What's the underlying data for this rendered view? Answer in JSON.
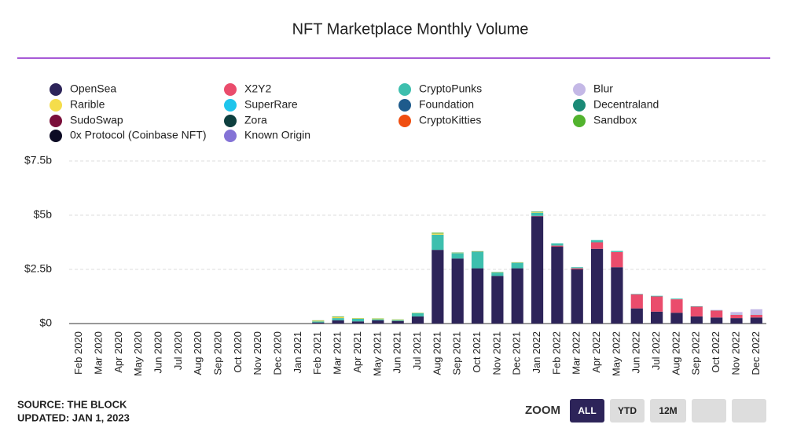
{
  "chart_data": {
    "type": "stacked-bar",
    "title": "NFT Marketplace Monthly Volume",
    "categories": [
      "Feb 2020",
      "Mar 2020",
      "Apr 2020",
      "May 2020",
      "Jun 2020",
      "Jul 2020",
      "Aug 2020",
      "Sep 2020",
      "Oct 2020",
      "Nov 2020",
      "Dec 2020",
      "Jan 2021",
      "Feb 2021",
      "Mar 2021",
      "Apr 2021",
      "May 2021",
      "Jun 2021",
      "Jul 2021",
      "Aug 2021",
      "Sep 2021",
      "Oct 2021",
      "Nov 2021",
      "Dec 2021",
      "Jan 2022",
      "Feb 2022",
      "Mar 2022",
      "Apr 2022",
      "May 2022",
      "Jun 2022",
      "Jul 2022",
      "Aug 2022",
      "Sep 2022",
      "Oct 2022",
      "Nov 2022",
      "Dec 2022"
    ],
    "series": [
      {
        "name": "OpenSea",
        "color": "#2d2459",
        "values": [
          0,
          0,
          0,
          0,
          0,
          0,
          0,
          0,
          0,
          0,
          0,
          0,
          0.05,
          0.15,
          0.1,
          0.15,
          0.12,
          0.33,
          3.4,
          3.0,
          2.55,
          2.2,
          2.55,
          4.95,
          3.55,
          2.5,
          3.45,
          2.6,
          0.7,
          0.55,
          0.5,
          0.33,
          0.28,
          0.25,
          0.28
        ]
      },
      {
        "name": "X2Y2",
        "color": "#ea4c6c",
        "values": [
          0,
          0,
          0,
          0,
          0,
          0,
          0,
          0,
          0,
          0,
          0,
          0,
          0,
          0,
          0,
          0,
          0,
          0,
          0,
          0,
          0,
          0,
          0,
          0.02,
          0.05,
          0.05,
          0.3,
          0.7,
          0.65,
          0.7,
          0.62,
          0.45,
          0.32,
          0.15,
          0.12
        ]
      },
      {
        "name": "CryptoPunks",
        "color": "#3dbfae",
        "values": [
          0,
          0,
          0,
          0,
          0,
          0,
          0,
          0,
          0,
          0,
          0,
          0,
          0.05,
          0.1,
          0.12,
          0.05,
          0.04,
          0.15,
          0.7,
          0.25,
          0.75,
          0.15,
          0.25,
          0.15,
          0.1,
          0.05,
          0.1,
          0.05,
          0.02,
          0.03,
          0.03,
          0.02,
          0.01,
          0.01,
          0.01
        ]
      },
      {
        "name": "Blur",
        "color": "#c4b8e6",
        "values": [
          0,
          0,
          0,
          0,
          0,
          0,
          0,
          0,
          0,
          0,
          0,
          0,
          0,
          0,
          0,
          0,
          0,
          0,
          0,
          0,
          0,
          0,
          0,
          0,
          0,
          0,
          0,
          0,
          0,
          0,
          0,
          0,
          0.02,
          0.12,
          0.25
        ]
      },
      {
        "name": "Rarible",
        "color": "#f5dd4b",
        "values": [
          0,
          0,
          0,
          0,
          0,
          0,
          0,
          0,
          0,
          0,
          0,
          0,
          0.03,
          0.05,
          0.02,
          0.03,
          0.02,
          0.01,
          0.05,
          0.01,
          0.01,
          0.01,
          0.01,
          0.03,
          0,
          0,
          0,
          0,
          0,
          0,
          0,
          0,
          0,
          0,
          0
        ]
      },
      {
        "name": "SuperRare",
        "color": "#1fc5ec",
        "values": [
          0,
          0,
          0,
          0,
          0,
          0,
          0,
          0,
          0,
          0,
          0,
          0,
          0,
          0,
          0,
          0,
          0,
          0,
          0,
          0,
          0,
          0,
          0,
          0,
          0,
          0,
          0,
          0,
          0,
          0,
          0,
          0,
          0,
          0,
          0
        ]
      },
      {
        "name": "Foundation",
        "color": "#1e5b8c",
        "values": [
          0,
          0,
          0,
          0,
          0,
          0,
          0,
          0,
          0,
          0,
          0,
          0,
          0,
          0,
          0,
          0,
          0,
          0,
          0,
          0,
          0,
          0,
          0,
          0,
          0,
          0,
          0,
          0,
          0,
          0,
          0,
          0,
          0,
          0,
          0
        ]
      },
      {
        "name": "Decentraland",
        "color": "#1b8a77",
        "values": [
          0,
          0,
          0,
          0,
          0,
          0,
          0,
          0,
          0,
          0,
          0,
          0,
          0.01,
          0.01,
          0,
          0,
          0,
          0,
          0.01,
          0.01,
          0.02,
          0.01,
          0.01,
          0.01,
          0,
          0,
          0,
          0,
          0,
          0,
          0,
          0,
          0,
          0,
          0
        ]
      },
      {
        "name": "SudoSwap",
        "color": "#7a0f3a",
        "values": [
          0,
          0,
          0,
          0,
          0,
          0,
          0,
          0,
          0,
          0,
          0,
          0,
          0,
          0,
          0,
          0,
          0,
          0,
          0,
          0,
          0,
          0,
          0,
          0,
          0,
          0,
          0,
          0,
          0,
          0,
          0,
          0,
          0,
          0,
          0
        ]
      },
      {
        "name": "Zora",
        "color": "#0e3f3f",
        "values": [
          0,
          0,
          0,
          0,
          0,
          0,
          0,
          0,
          0,
          0,
          0,
          0,
          0,
          0,
          0,
          0,
          0,
          0,
          0,
          0,
          0,
          0,
          0,
          0,
          0,
          0,
          0,
          0,
          0,
          0,
          0,
          0,
          0,
          0,
          0
        ]
      },
      {
        "name": "CryptoKitties",
        "color": "#f04e10",
        "values": [
          0,
          0,
          0,
          0,
          0,
          0,
          0,
          0,
          0,
          0,
          0,
          0,
          0,
          0,
          0,
          0,
          0,
          0,
          0,
          0,
          0,
          0,
          0,
          0,
          0,
          0,
          0,
          0,
          0,
          0,
          0,
          0,
          0,
          0,
          0
        ]
      },
      {
        "name": "Sandbox",
        "color": "#52b32e",
        "values": [
          0,
          0,
          0,
          0,
          0,
          0,
          0,
          0,
          0,
          0,
          0,
          0,
          0.01,
          0.02,
          0.01,
          0.01,
          0.01,
          0.01,
          0.03,
          0.01,
          0.01,
          0.01,
          0.01,
          0.01,
          0,
          0,
          0,
          0,
          0,
          0,
          0,
          0,
          0,
          0,
          0
        ]
      },
      {
        "name": "0x Protocol (Coinbase NFT)",
        "color": "#0c0b24",
        "values": [
          0,
          0,
          0,
          0,
          0,
          0,
          0,
          0,
          0,
          0,
          0,
          0,
          0,
          0,
          0,
          0,
          0,
          0,
          0,
          0,
          0,
          0,
          0,
          0,
          0,
          0,
          0,
          0,
          0,
          0,
          0,
          0,
          0,
          0,
          0
        ]
      },
      {
        "name": "Known Origin",
        "color": "#8473d6",
        "values": [
          0,
          0,
          0,
          0,
          0,
          0,
          0,
          0,
          0,
          0,
          0,
          0,
          0,
          0,
          0,
          0,
          0,
          0,
          0,
          0,
          0,
          0,
          0,
          0,
          0,
          0,
          0,
          0,
          0,
          0,
          0,
          0,
          0,
          0,
          0
        ]
      }
    ],
    "ylim": [
      0,
      7.5
    ],
    "yticks": [
      {
        "value": 0,
        "label": "$0"
      },
      {
        "value": 2.5,
        "label": "$2.5b"
      },
      {
        "value": 5,
        "label": "$5b"
      },
      {
        "value": 7.5,
        "label": "$7.5b"
      }
    ],
    "grid": true,
    "legend": "top"
  },
  "footer": {
    "source": "SOURCE: THE BLOCK",
    "updated": "UPDATED: JAN 1, 2023"
  },
  "zoom": {
    "label": "ZOOM",
    "buttons": [
      "ALL",
      "YTD",
      "12M"
    ]
  }
}
